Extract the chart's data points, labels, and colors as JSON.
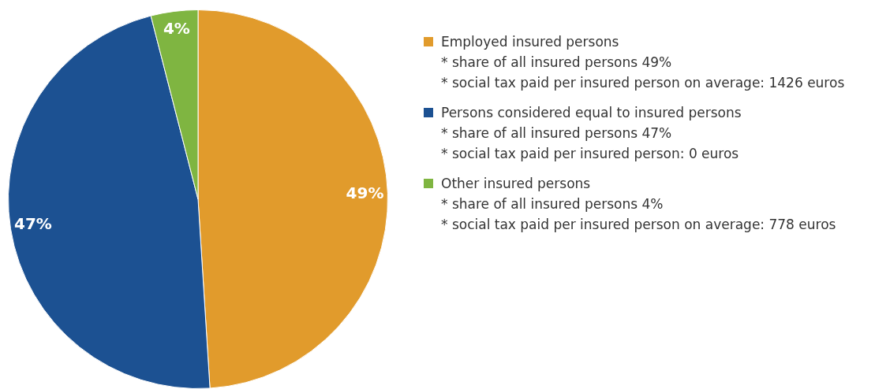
{
  "chart_data": {
    "type": "pie",
    "categories": [
      "Employed insured persons",
      "Persons considered equal to insured persons",
      "Other insured persons"
    ],
    "values": [
      49,
      47,
      4
    ],
    "colors": [
      "#e19b2c",
      "#1c5192",
      "#7fb541"
    ],
    "value_labels": [
      "49%",
      "47%",
      "4%"
    ],
    "legend": "right",
    "annotations": [
      "* share of all insured persons 49%",
      "* social tax paid per insured person on average: 1426 euros",
      "* share of all insured persons 47%",
      "* social tax paid per insured person: 0 euros",
      "* share of all insured persons 4%",
      "* social tax paid per insured person on average: 778 euros"
    ]
  }
}
